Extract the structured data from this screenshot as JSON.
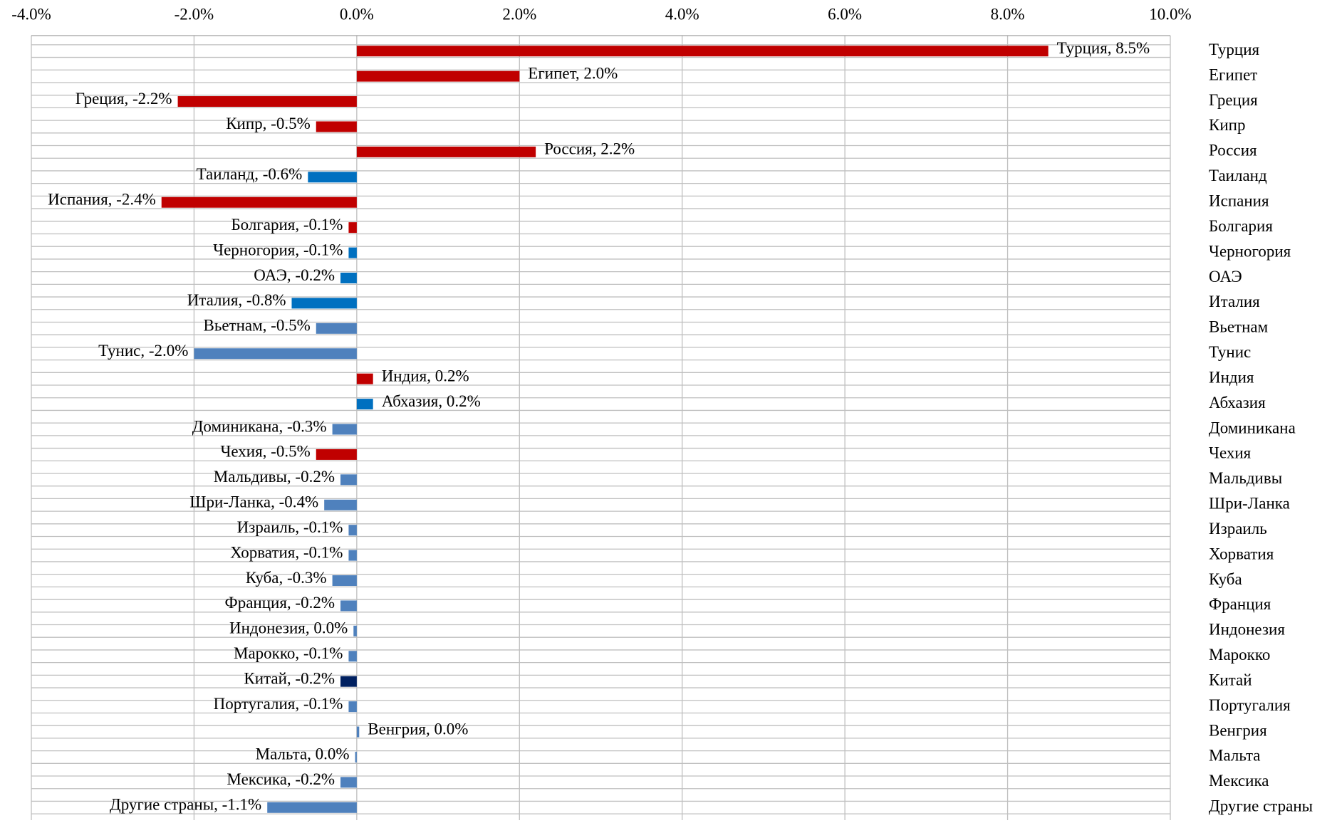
{
  "chart_data": {
    "type": "bar",
    "orientation": "horizontal",
    "categories": [
      "Турция",
      "Египет",
      "Греция",
      "Кипр",
      "Россия",
      "Таиланд",
      "Испания",
      "Болгария",
      "Черногория",
      "ОАЭ",
      "Италия",
      "Вьетнам",
      "Тунис",
      "Индия",
      "Абхазия",
      "Доминикана",
      "Чехия",
      "Мальдивы",
      "Шри-Ланка",
      "Израиль",
      "Хорватия",
      "Куба",
      "Франция",
      "Индонезия",
      "Марокко",
      "Китай",
      "Португалия",
      "Венгрия",
      "Мальта",
      "Мексика",
      "Другие страны"
    ],
    "values": [
      8.5,
      2.0,
      -2.2,
      -0.5,
      2.2,
      -0.6,
      -2.4,
      -0.1,
      -0.1,
      -0.2,
      -0.8,
      -0.5,
      -2.0,
      0.2,
      0.2,
      -0.3,
      -0.5,
      -0.2,
      -0.4,
      -0.1,
      -0.1,
      -0.3,
      -0.2,
      -0.04,
      -0.1,
      -0.2,
      -0.1,
      0.03,
      -0.02,
      -0.2,
      -1.1
    ],
    "value_labels": [
      "Турция, 8.5%",
      "Египет, 2.0%",
      "Греция, -2.2%",
      "Кипр, -0.5%",
      "Россия, 2.2%",
      "Таиланд, -0.6%",
      "Испания, -2.4%",
      "Болгария, -0.1%",
      "Черногория, -0.1%",
      "ОАЭ, -0.2%",
      "Италия, -0.8%",
      "Вьетнам, -0.5%",
      "Тунис, -2.0%",
      "Индия, 0.2%",
      "Абхазия, 0.2%",
      "Доминикана, -0.3%",
      "Чехия, -0.5%",
      "Мальдивы, -0.2%",
      "Шри-Ланка, -0.4%",
      "Израиль, -0.1%",
      "Хорватия, -0.1%",
      "Куба, -0.3%",
      "Франция, -0.2%",
      "Индонезия, 0.0%",
      "Марокко, -0.1%",
      "Китай, -0.2%",
      "Португалия, -0.1%",
      "Венгрия, 0.0%",
      "Мальта, 0.0%",
      "Мексика, -0.2%",
      "Другие страны, -1.1%"
    ],
    "colors": [
      "#c00000",
      "#c00000",
      "#c00000",
      "#c00000",
      "#c00000",
      "#0070c0",
      "#c00000",
      "#c00000",
      "#0070c0",
      "#0070c0",
      "#0070c0",
      "#4f81bd",
      "#4f81bd",
      "#c00000",
      "#0070c0",
      "#4f81bd",
      "#c00000",
      "#4f81bd",
      "#4f81bd",
      "#4f81bd",
      "#4f81bd",
      "#4f81bd",
      "#4f81bd",
      "#4f81bd",
      "#4f81bd",
      "#002060",
      "#4f81bd",
      "#4f81bd",
      "#4f81bd",
      "#4f81bd",
      "#4f81bd"
    ],
    "xlim": [
      -4,
      10
    ],
    "xticks": [
      {
        "value": -4,
        "label": "-4.0%"
      },
      {
        "value": -2,
        "label": "-2.0%"
      },
      {
        "value": 0,
        "label": "0.0%"
      },
      {
        "value": 2,
        "label": "2.0%"
      },
      {
        "value": 4,
        "label": "4.0%"
      },
      {
        "value": 6,
        "label": "6.0%"
      },
      {
        "value": 8,
        "label": "8.0%"
      },
      {
        "value": 10,
        "label": "10.0%"
      }
    ],
    "grid": true
  }
}
